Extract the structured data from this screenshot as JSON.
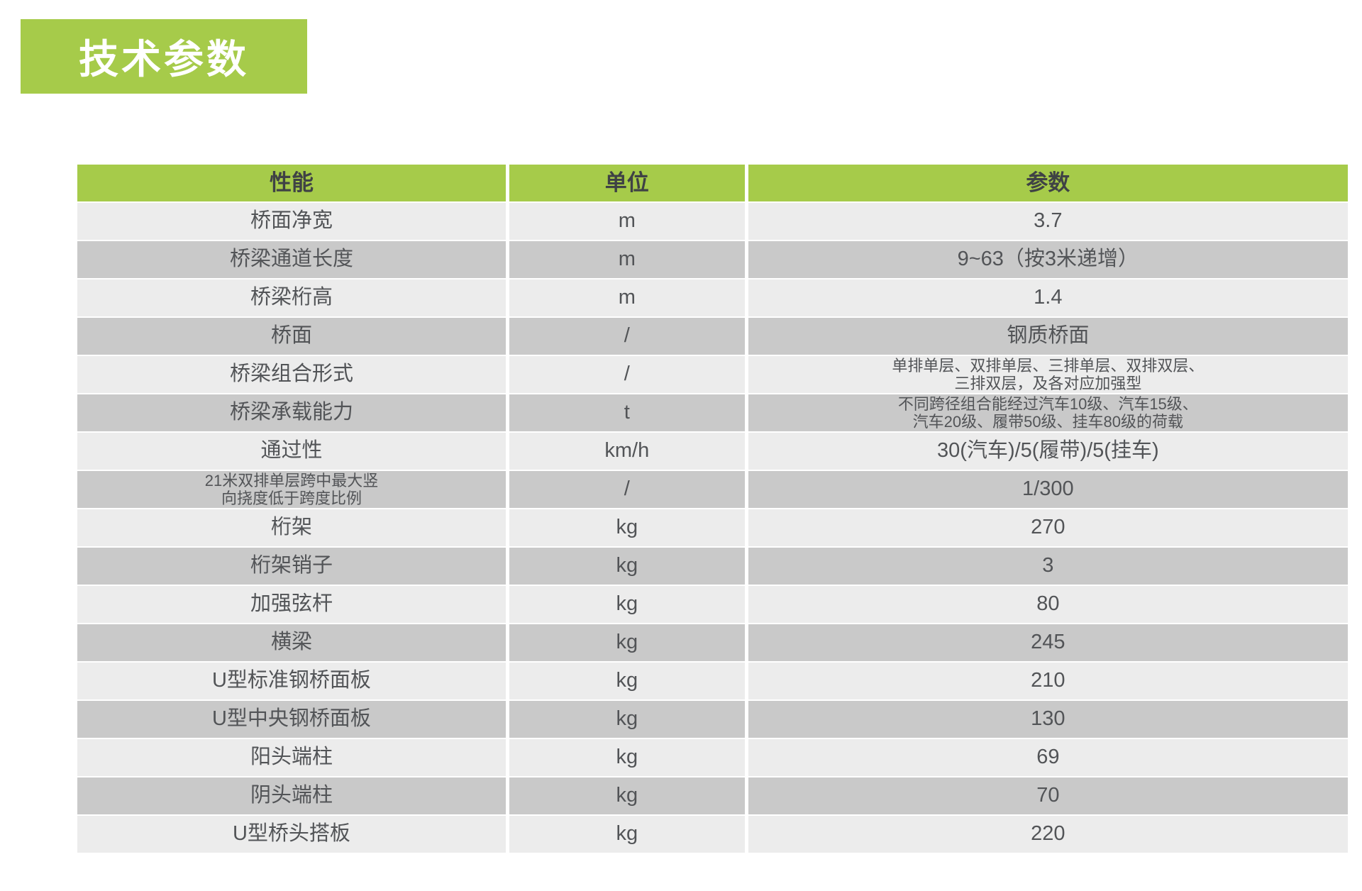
{
  "title_badge": "技术参数",
  "colors": {
    "accent_green": "#a6cb4a",
    "row_light": "#ececec",
    "row_dark": "#c9c9c9",
    "header_text": "#3f4245",
    "body_text": "#525457",
    "title_text": "#ffffff"
  },
  "table": {
    "headers": [
      "性能",
      "单位",
      "参数"
    ],
    "rows": [
      {
        "name": "桥面净宽",
        "unit": "m",
        "value": "3.7"
      },
      {
        "name": "桥梁通道长度",
        "unit": "m",
        "value": "9~63（按3米递增）"
      },
      {
        "name": "桥梁桁高",
        "unit": "m",
        "value": "1.4"
      },
      {
        "name": "桥面",
        "unit": "/",
        "value": "钢质桥面"
      },
      {
        "name": "桥梁组合形式",
        "unit": "/",
        "value": "单排单层、双排单层、三排单层、双排双层、\n三排双层，及各对应加强型"
      },
      {
        "name": "桥梁承载能力",
        "unit": "t",
        "value": "不同跨径组合能经过汽车10级、汽车15级、\n汽车20级、履带50级、挂车80级的荷载"
      },
      {
        "name": "通过性",
        "unit": "km/h",
        "value": "30(汽车)/5(履带)/5(挂车)"
      },
      {
        "name": "21米双排单层跨中最大竖\n向挠度低于跨度比例",
        "unit": "/",
        "value": "1/300"
      },
      {
        "name": "桁架",
        "unit": "kg",
        "value": "270"
      },
      {
        "name": "桁架销子",
        "unit": "kg",
        "value": "3"
      },
      {
        "name": "加强弦杆",
        "unit": "kg",
        "value": "80"
      },
      {
        "name": "横梁",
        "unit": "kg",
        "value": "245"
      },
      {
        "name": "U型标准钢桥面板",
        "unit": "kg",
        "value": "210"
      },
      {
        "name": "U型中央钢桥面板",
        "unit": "kg",
        "value": "130"
      },
      {
        "name": "阳头端柱",
        "unit": "kg",
        "value": "69"
      },
      {
        "name": "阴头端柱",
        "unit": "kg",
        "value": "70"
      },
      {
        "name": "U型桥头搭板",
        "unit": "kg",
        "value": "220"
      }
    ]
  }
}
